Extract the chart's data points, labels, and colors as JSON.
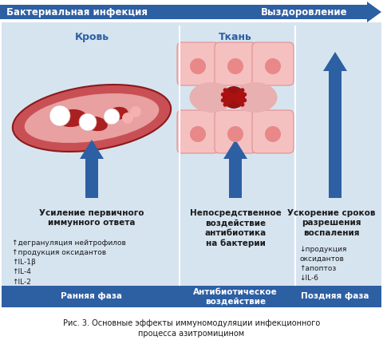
{
  "bg_color": "#ffffff",
  "arrow_color": "#2d5fa3",
  "light_blue_bg": "#d6e4f0",
  "dark_blue_bg": "#2d5fa3",
  "title_arrow_text_left": "Бактериальная инфекция",
  "title_arrow_text_right": "Выздоровление",
  "label_blood": "Кровь",
  "label_tissue": "Ткань",
  "col1_bold": "Усиление первичного\nиммунного ответа",
  "col1_items": "↑дегрануляция нейтрофилов\n↑продукция оксидантов\n↑IL-1β\n↑IL-4\n↑IL-2",
  "col2_bold": "Непосредственное\nвоздействие\nантибиотика\nна бактерии",
  "col3_bold": "Ускорение сроков\nразрешения\nвоспаления",
  "col3_items": "↓продукция\nоксидантов\n↑апоптоз\n↓IL-6",
  "bottom_label1": "Ранняя фаза",
  "bottom_label2": "Антибиотическое\nвоздействие",
  "bottom_label3": "Поздняя фаза",
  "caption": "Рис. 3. Основные эффекты иммуномодуляции инфекционного\nпроцесса азитромицином"
}
